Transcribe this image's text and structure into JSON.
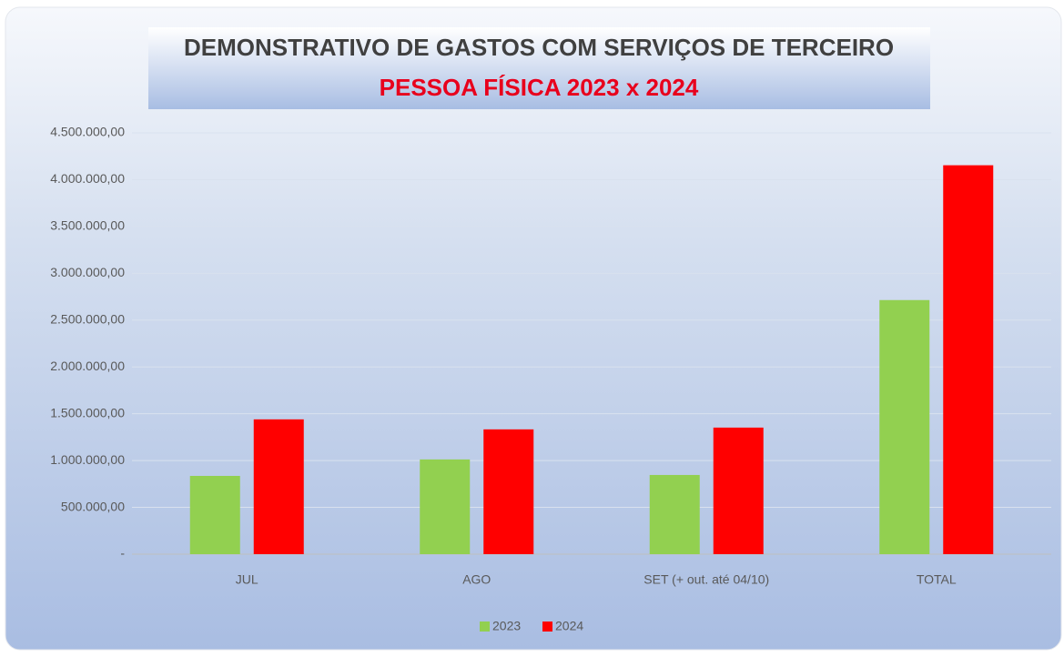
{
  "chart_data": {
    "type": "bar",
    "title": "DEMONSTRATIVO DE GASTOS COM SERVIÇOS DE TERCEIRO",
    "subtitle": "PESSOA FÍSICA 2023 x 2024",
    "categories": [
      "JUL",
      "AGO",
      "SET (+ out. até 04/10)",
      "TOTAL"
    ],
    "series": [
      {
        "name": "2023",
        "color": "#92d050",
        "values": [
          836000,
          1012000,
          846000,
          2714000
        ]
      },
      {
        "name": "2024",
        "color": "#ff0000",
        "values": [
          1440000,
          1333000,
          1352000,
          4154000
        ]
      }
    ],
    "ylim": [
      0,
      4500000
    ],
    "yticks": [
      {
        "value": 0,
        "label": "-"
      },
      {
        "value": 500000,
        "label": "500.000,00"
      },
      {
        "value": 1000000,
        "label": "1.000.000,00"
      },
      {
        "value": 1500000,
        "label": "1.500.000,00"
      },
      {
        "value": 2000000,
        "label": "2.000.000,00"
      },
      {
        "value": 2500000,
        "label": "2.500.000,00"
      },
      {
        "value": 3000000,
        "label": "3.000.000,00"
      },
      {
        "value": 3500000,
        "label": "3.500.000,00"
      },
      {
        "value": 4000000,
        "label": "4.000.000,00"
      },
      {
        "value": 4500000,
        "label": "4.500.000,00"
      }
    ],
    "grid": true,
    "legend": "bottom"
  }
}
